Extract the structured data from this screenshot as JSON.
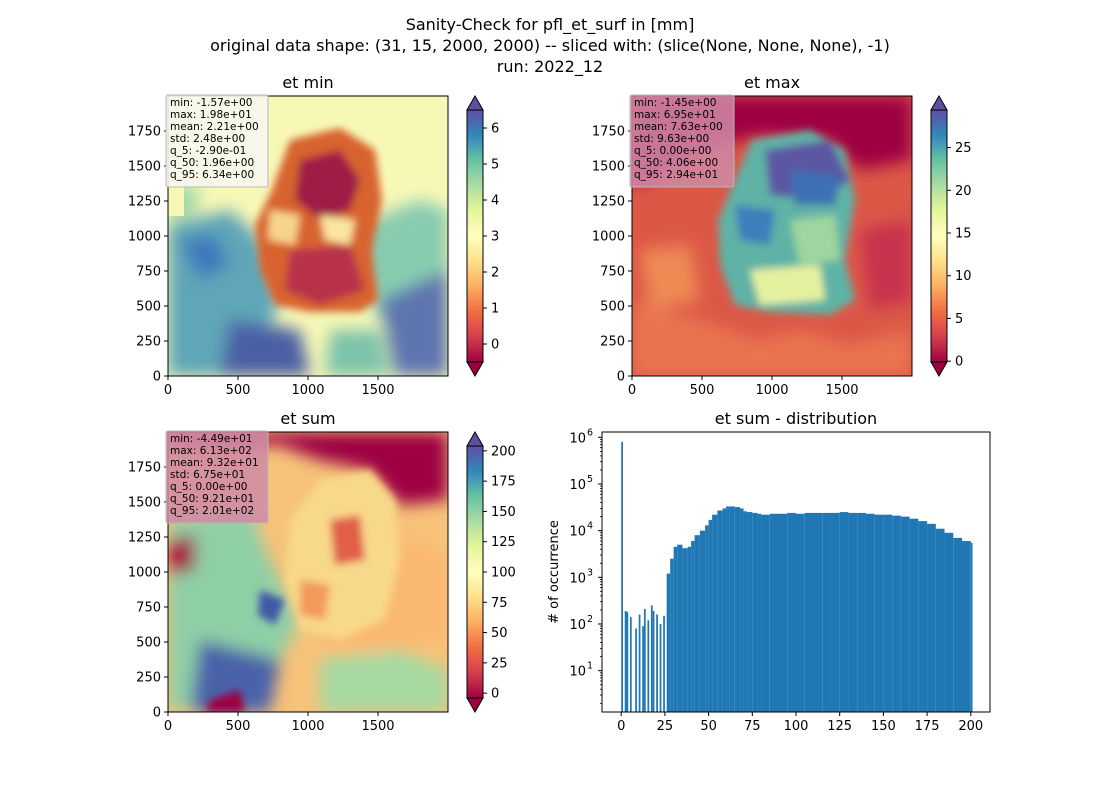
{
  "figure": {
    "suptitle_lines": [
      "Sanity-Check for pfl_et_surf in [mm]",
      "original data shape: (31, 15, 2000, 2000) -- sliced with: (slice(None, None, None), -1)",
      "run: 2022_12"
    ],
    "colormap": "Spectral",
    "colors": {
      "histogram_bar": "#1f77b4",
      "stats_box_light": "#f7f7f0",
      "stats_box_dark": "#d08aa6"
    }
  },
  "chart_data": [
    {
      "type": "heatmap",
      "title": "et min",
      "xlim": [
        0,
        2000
      ],
      "ylim": [
        0,
        2000
      ],
      "xticks": [
        0,
        500,
        1000,
        1500
      ],
      "yticks": [
        0,
        250,
        500,
        750,
        1000,
        1250,
        1500,
        1750
      ],
      "colorbar": {
        "min": -0.5,
        "max": 6.5,
        "ticks": [
          0,
          1,
          2,
          3,
          4,
          5,
          6
        ],
        "extend": "both"
      },
      "stats": [
        "min: -1.57e+00",
        "max: 1.98e+01",
        "mean: 2.21e+00",
        "std: 2.48e+00",
        "q_5: -2.90e-01",
        "q_50: 1.96e+00",
        "q_95: 6.34e+00"
      ]
    },
    {
      "type": "heatmap",
      "title": "et max",
      "xlim": [
        0,
        2000
      ],
      "ylim": [
        0,
        2000
      ],
      "xticks": [
        0,
        500,
        1000,
        1500
      ],
      "yticks": [
        0,
        250,
        500,
        750,
        1000,
        1250,
        1500,
        1750
      ],
      "colorbar": {
        "min": -0.1,
        "max": 29.4,
        "ticks": [
          0,
          5,
          10,
          15,
          20,
          25
        ],
        "extend": "both"
      },
      "stats": [
        "min: -1.45e+00",
        "max: 6.95e+01",
        "mean: 7.63e+00",
        "std: 9.63e+00",
        "q_5: 0.00e+00",
        "q_50: 4.06e+00",
        "q_95: 2.94e+01"
      ]
    },
    {
      "type": "heatmap",
      "title": "et sum",
      "xlim": [
        0,
        2000
      ],
      "ylim": [
        0,
        2000
      ],
      "xticks": [
        0,
        500,
        1000,
        1500
      ],
      "yticks": [
        0,
        250,
        500,
        750,
        1000,
        1250,
        1500,
        1750
      ],
      "colorbar": {
        "min": -4,
        "max": 204,
        "ticks": [
          0,
          25,
          50,
          75,
          100,
          125,
          150,
          175,
          200
        ],
        "extend": "both"
      },
      "stats": [
        "min: -4.49e+01",
        "max: 6.13e+02",
        "mean: 9.32e+01",
        "std: 6.75e+01",
        "q_5: 0.00e+00",
        "q_50: 9.21e+01",
        "q_95: 2.01e+02"
      ]
    },
    {
      "type": "bar",
      "title": "et sum - distribution",
      "xlabel": "",
      "ylabel": "# of occurrence",
      "yscale": "log",
      "xlim": [
        -11,
        211
      ],
      "ylim": [
        1.3,
        1300000
      ],
      "xticks": [
        0,
        25,
        50,
        75,
        100,
        125,
        150,
        175,
        200
      ],
      "yticks": [
        {
          "value": 10,
          "label": "10",
          "exp": "1"
        },
        {
          "value": 100,
          "label": "10",
          "exp": "2"
        },
        {
          "value": 1000,
          "label": "10",
          "exp": "3"
        },
        {
          "value": 10000,
          "label": "10",
          "exp": "4"
        },
        {
          "value": 100000,
          "label": "10",
          "exp": "5"
        },
        {
          "value": 1000000,
          "label": "10",
          "exp": "6"
        }
      ],
      "x": [
        0,
        2,
        3,
        5,
        8,
        10,
        12,
        13,
        15,
        17,
        18,
        20,
        22,
        24,
        26,
        28,
        30,
        32,
        35,
        38,
        40,
        42,
        45,
        48,
        50,
        52,
        55,
        58,
        60,
        62,
        65,
        68,
        70,
        72,
        75,
        78,
        80,
        85,
        90,
        95,
        100,
        105,
        110,
        115,
        120,
        125,
        130,
        135,
        140,
        145,
        150,
        155,
        160,
        165,
        170,
        175,
        180,
        185,
        190,
        195,
        200
      ],
      "values": [
        800000,
        190,
        180,
        140,
        80,
        160,
        90,
        210,
        120,
        250,
        190,
        160,
        100,
        150,
        1200,
        2500,
        4500,
        5000,
        4200,
        4500,
        6000,
        8000,
        10000,
        13000,
        17000,
        22000,
        27000,
        30000,
        33000,
        33000,
        32000,
        30000,
        26000,
        25000,
        24000,
        23000,
        22000,
        23000,
        23000,
        24000,
        23000,
        24000,
        24000,
        24000,
        24000,
        25000,
        24000,
        24000,
        23000,
        22000,
        22000,
        21000,
        20000,
        18000,
        16000,
        14000,
        11000,
        9000,
        7000,
        6000,
        5500
      ]
    }
  ]
}
